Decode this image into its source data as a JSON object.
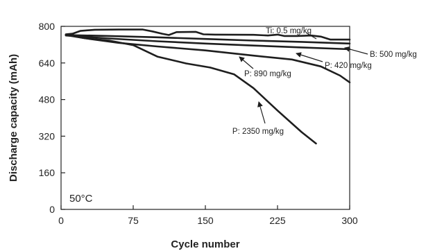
{
  "chart_data": {
    "type": "line",
    "xlabel": "Cycle number",
    "ylabel": "Discharge capacity (mAh)",
    "xlim": [
      0,
      300
    ],
    "ylim": [
      0,
      800
    ],
    "xticks": [
      "0",
      "75",
      "150",
      "225",
      "300"
    ],
    "yticks": [
      "0",
      "160",
      "320",
      "480",
      "640",
      "800"
    ],
    "grid": false,
    "legend": "none",
    "condition_label": "50°C",
    "series": [
      {
        "name": "Ti: 0.5 mg/kg",
        "x": [
          5,
          12,
          20,
          35,
          60,
          85,
          95,
          105,
          112,
          120,
          140,
          148,
          160,
          200,
          215,
          225,
          232,
          245,
          260,
          270,
          280,
          290,
          300
        ],
        "y": [
          765,
          768,
          780,
          785,
          786,
          786,
          778,
          768,
          762,
          775,
          776,
          765,
          764,
          763,
          760,
          764,
          758,
          758,
          760,
          755,
          742,
          742,
          742
        ]
      },
      {
        "name": "B: 500 mg/kg",
        "x": [
          5,
          50,
          100,
          150,
          200,
          250,
          300
        ],
        "y": [
          762,
          758,
          752,
          745,
          738,
          732,
          725
        ]
      },
      {
        "name": "P: 420 mg/kg",
        "x": [
          5,
          50,
          100,
          150,
          200,
          250,
          300
        ],
        "y": [
          760,
          747,
          735,
          725,
          716,
          708,
          700
        ]
      },
      {
        "name": "P: 890 mg/kg",
        "x": [
          5,
          30,
          60,
          100,
          150,
          200,
          240,
          270,
          290,
          300
        ],
        "y": [
          762,
          745,
          728,
          712,
          695,
          672,
          655,
          625,
          585,
          555
        ]
      },
      {
        "name": "P: 2350 mg/kg",
        "x": [
          5,
          25,
          50,
          75,
          100,
          130,
          155,
          180,
          200,
          225,
          250,
          265
        ],
        "y": [
          762,
          748,
          738,
          718,
          668,
          638,
          620,
          590,
          530,
          432,
          338,
          288
        ]
      }
    ],
    "annotations": [
      {
        "text": "Ti: 0.5 mg/kg",
        "series": 0
      },
      {
        "text": "B: 500 mg/kg",
        "series": 1
      },
      {
        "text": "P: 420 mg/kg",
        "series": 2
      },
      {
        "text": "P: 890 mg/kg",
        "series": 3
      },
      {
        "text": "P: 2350 mg/kg",
        "series": 4
      }
    ]
  }
}
